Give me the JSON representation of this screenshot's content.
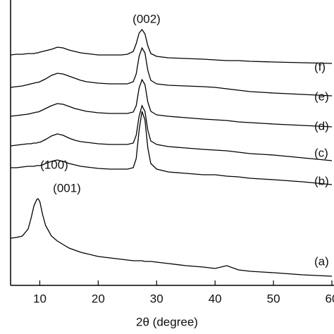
{
  "chart_data": {
    "type": "line",
    "xlabel": "2θ (degree)",
    "x": [
      5,
      6,
      7,
      8,
      8.5,
      9,
      9.5,
      9.7,
      10,
      10.5,
      11,
      12,
      13,
      14,
      15,
      16,
      17,
      18,
      20,
      22,
      24,
      25,
      26,
      26.5,
      27,
      27.5,
      28,
      28.5,
      29,
      30,
      32,
      35,
      38,
      40,
      42,
      44,
      46,
      50,
      55,
      60
    ],
    "series": [
      {
        "name": "(a)",
        "color": "#000000",
        "values": [
          67,
          68,
          70,
          80,
          95,
          113,
          122,
          123,
          119,
          100,
          85,
          70,
          63,
          58,
          53,
          50,
          47,
          45,
          41,
          39,
          37,
          36,
          35,
          35,
          35,
          35,
          34,
          34,
          34,
          33,
          31,
          28,
          26,
          24,
          28,
          22,
          20,
          18,
          15,
          13
        ]
      },
      {
        "name": "(b)",
        "color": "#000000",
        "values": [
          167,
          167,
          168,
          169,
          169,
          169,
          170,
          170,
          170,
          171,
          173,
          176,
          178,
          176,
          173,
          171,
          169,
          168,
          166,
          165,
          165,
          165,
          167,
          180,
          220,
          247,
          235,
          195,
          173,
          165,
          161,
          159,
          157,
          157,
          155,
          154,
          152,
          150,
          147,
          143
        ]
      },
      {
        "name": "(c)",
        "color": "#000000",
        "values": [
          198,
          199,
          200,
          201,
          201,
          202,
          202,
          203,
          203,
          205,
          207,
          212,
          215,
          213,
          209,
          206,
          204,
          203,
          201,
          200,
          200,
          200,
          202,
          213,
          240,
          255,
          247,
          220,
          205,
          200,
          197,
          195,
          193,
          192,
          191,
          189,
          187,
          185,
          181,
          177
        ]
      },
      {
        "name": "(d)",
        "color": "#000000",
        "values": [
          240,
          241,
          242,
          243,
          244,
          245,
          246,
          246,
          247,
          249,
          251,
          255,
          258,
          257,
          254,
          251,
          249,
          247,
          245,
          244,
          244,
          244,
          246,
          255,
          280,
          292,
          285,
          260,
          247,
          242,
          240,
          238,
          236,
          235,
          234,
          232,
          231,
          229,
          227,
          225
        ]
      },
      {
        "name": "(e)",
        "color": "#000000",
        "values": [
          281,
          282,
          283,
          285,
          286,
          287,
          288,
          288,
          289,
          291,
          293,
          298,
          301,
          300,
          297,
          294,
          291,
          289,
          287,
          286,
          286,
          286,
          289,
          300,
          325,
          337,
          330,
          305,
          291,
          286,
          284,
          283,
          282,
          281,
          279,
          277,
          275,
          273,
          271,
          269
        ]
      },
      {
        "name": "(f)",
        "color": "#000000",
        "values": [
          327,
          328,
          328,
          329,
          329,
          329,
          330,
          330,
          331,
          332,
          333,
          335,
          338,
          337,
          334,
          332,
          330,
          329,
          327,
          327,
          327,
          328,
          332,
          343,
          358,
          363,
          357,
          340,
          329,
          325,
          323,
          322,
          321,
          320,
          319,
          319,
          318,
          317,
          316,
          315
        ]
      }
    ],
    "annotations": [
      "(002)",
      "(100)",
      "(001)"
    ],
    "xlim": [
      5,
      60
    ],
    "xticks": [
      10,
      20,
      30,
      40,
      50,
      60
    ],
    "ylim": [
      0,
      405
    ]
  }
}
